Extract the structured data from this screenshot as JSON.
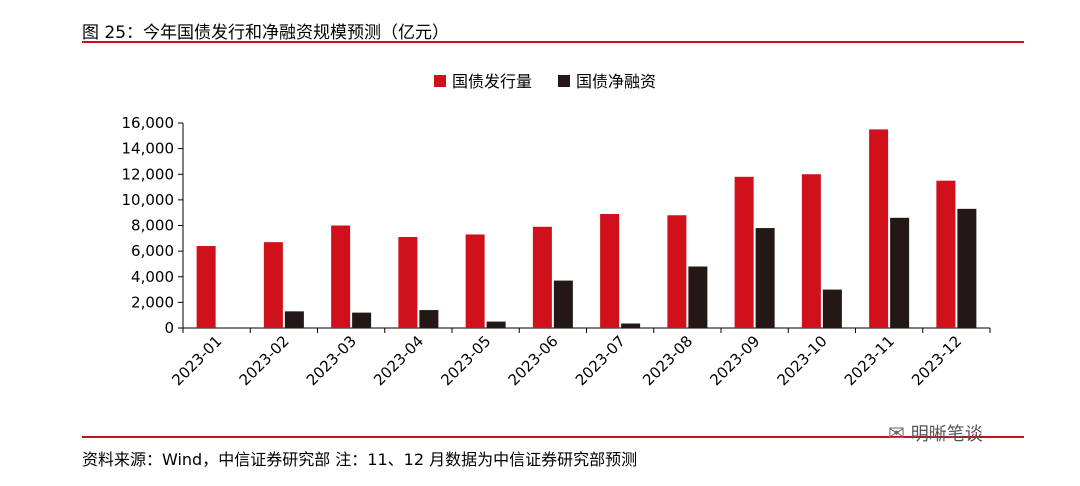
{
  "figure": {
    "title": "图 25：今年国债发行和净融资规模预测（亿元）",
    "source": "资料来源：Wind，中信证券研究部 注：11、12 月数据为中信证券研究部预测",
    "watermark": "明晰笔谈",
    "watermark_icon": "wechat-icon"
  },
  "chart_data": {
    "type": "bar",
    "title": "",
    "xlabel": "",
    "ylabel": "",
    "ylim": [
      0,
      16000
    ],
    "yticks": [
      0,
      2000,
      4000,
      6000,
      8000,
      10000,
      12000,
      14000,
      16000
    ],
    "ytick_labels": [
      "0",
      "2,000",
      "4,000",
      "6,000",
      "8,000",
      "10,000",
      "12,000",
      "14,000",
      "16,000"
    ],
    "categories": [
      "2023-01",
      "2023-02",
      "2023-03",
      "2023-04",
      "2023-05",
      "2023-06",
      "2023-07",
      "2023-08",
      "2023-09",
      "2023-10",
      "2023-11",
      "2023-12"
    ],
    "series": [
      {
        "name": "国债发行量",
        "color": "#d0101b",
        "values": [
          6400,
          6700,
          8000,
          7100,
          7300,
          7900,
          8900,
          8800,
          11800,
          12000,
          15500,
          11500
        ]
      },
      {
        "name": "国债净融资",
        "color": "#231815",
        "values": [
          0,
          1300,
          1200,
          1400,
          500,
          3700,
          350,
          4800,
          7800,
          3000,
          8600,
          9300
        ]
      }
    ],
    "legend_position": "top-center",
    "grid": false
  }
}
